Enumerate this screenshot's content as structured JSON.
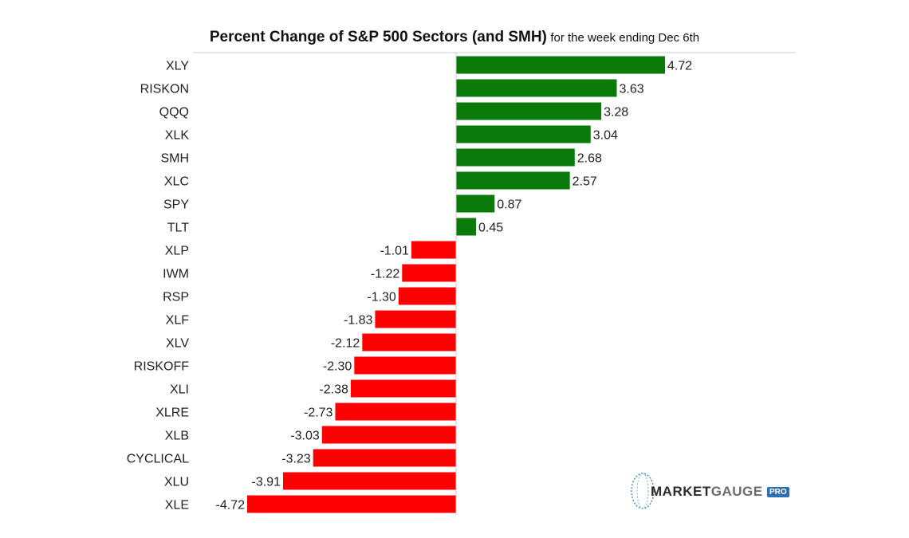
{
  "chart_data": {
    "type": "bar",
    "orientation": "horizontal",
    "title": "Percent Change of S&P 500 Sectors (and SMH)",
    "subtitle": "for the week ending Dec 6th",
    "categories": [
      "XLY",
      "RISKON",
      "QQQ",
      "XLK",
      "SMH",
      "XLC",
      "SPY",
      "TLT",
      "XLP",
      "IWM",
      "RSP",
      "XLF",
      "XLV",
      "RISKOFF",
      "XLI",
      "XLRE",
      "XLB",
      "CYCLICAL",
      "XLU",
      "XLE"
    ],
    "values": [
      4.72,
      3.63,
      3.28,
      3.04,
      2.68,
      2.57,
      0.87,
      0.45,
      -1.01,
      -1.22,
      -1.3,
      -1.83,
      -2.12,
      -2.3,
      -2.38,
      -2.73,
      -3.03,
      -3.23,
      -3.91,
      -4.72
    ],
    "value_labels": [
      "4.72",
      "3.63",
      "3.28",
      "3.04",
      "2.68",
      "2.57",
      "0.87",
      "0.45",
      "-1.01",
      "-1.22",
      "-1.30",
      "-1.83",
      "-2.12",
      "-2.30",
      "-2.38",
      "-2.73",
      "-3.03",
      "-3.23",
      "-3.91",
      "-4.72"
    ],
    "xlim": [
      -4.72,
      4.72
    ],
    "colors": {
      "positive": "#0a7a0a",
      "negative": "#ff0000"
    },
    "grid": false,
    "legend": "none"
  },
  "logo": {
    "brand_dark": "MARKET",
    "brand_light": "GAUGE",
    "badge": "PRO"
  }
}
